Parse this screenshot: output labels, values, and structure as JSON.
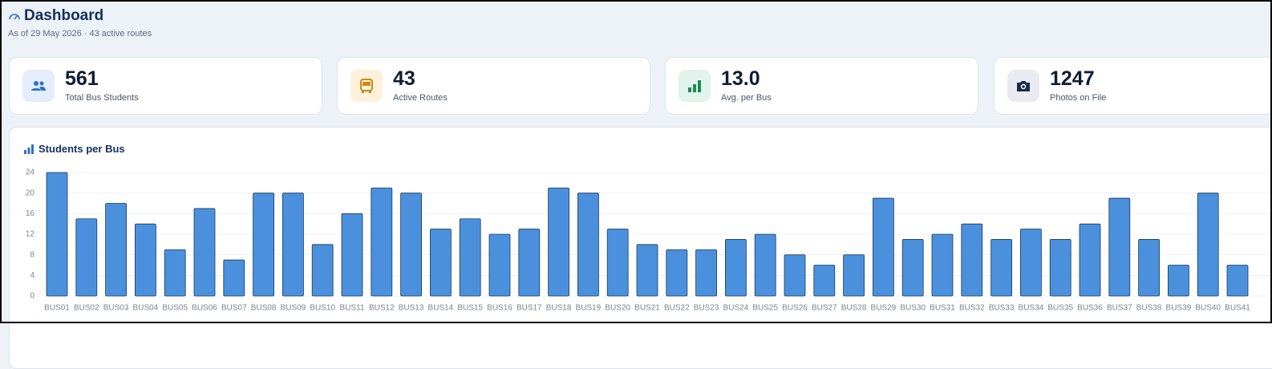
{
  "header": {
    "title": "Dashboard",
    "subtitle": "As of 29 May 2026 · 43 active routes"
  },
  "stats": [
    {
      "value": "561",
      "label": "Total Bus Students"
    },
    {
      "value": "43",
      "label": "Active Routes"
    },
    {
      "value": "13.0",
      "label": "Avg. per Bus"
    },
    {
      "value": "1247",
      "label": "Photos on File"
    }
  ],
  "chart_data": {
    "type": "bar",
    "title": "Students per Bus",
    "categories": [
      "BUS01",
      "BUS02",
      "BUS03",
      "BUS04",
      "BUS05",
      "BUS06",
      "BUS07",
      "BUS08",
      "BUS09",
      "BUS10",
      "BUS11",
      "BUS12",
      "BUS13",
      "BUS14",
      "BUS15",
      "BUS16",
      "BUS17",
      "BUS18",
      "BUS19",
      "BUS20",
      "BUS21",
      "BUS22",
      "BUS23",
      "BUS24",
      "BUS25",
      "BUS26",
      "BUS27",
      "BUS28",
      "BUS29",
      "BUS30",
      "BUS31",
      "BUS32",
      "BUS33",
      "BUS34",
      "BUS35",
      "BUS36",
      "BUS37",
      "BUS38",
      "BUS39",
      "BUS40",
      "BUS41"
    ],
    "values": [
      24,
      15,
      18,
      14,
      9,
      17,
      7,
      20,
      20,
      10,
      16,
      21,
      20,
      13,
      15,
      12,
      13,
      21,
      20,
      13,
      10,
      9,
      9,
      11,
      12,
      8,
      6,
      8,
      19,
      11,
      12,
      14,
      11,
      13,
      11,
      14,
      19,
      11,
      6,
      20,
      6
    ],
    "color": "#4a90dc",
    "ylim": [
      0,
      24
    ],
    "yticks": [
      0,
      4,
      8,
      12,
      16,
      20,
      24
    ],
    "grid": true
  }
}
